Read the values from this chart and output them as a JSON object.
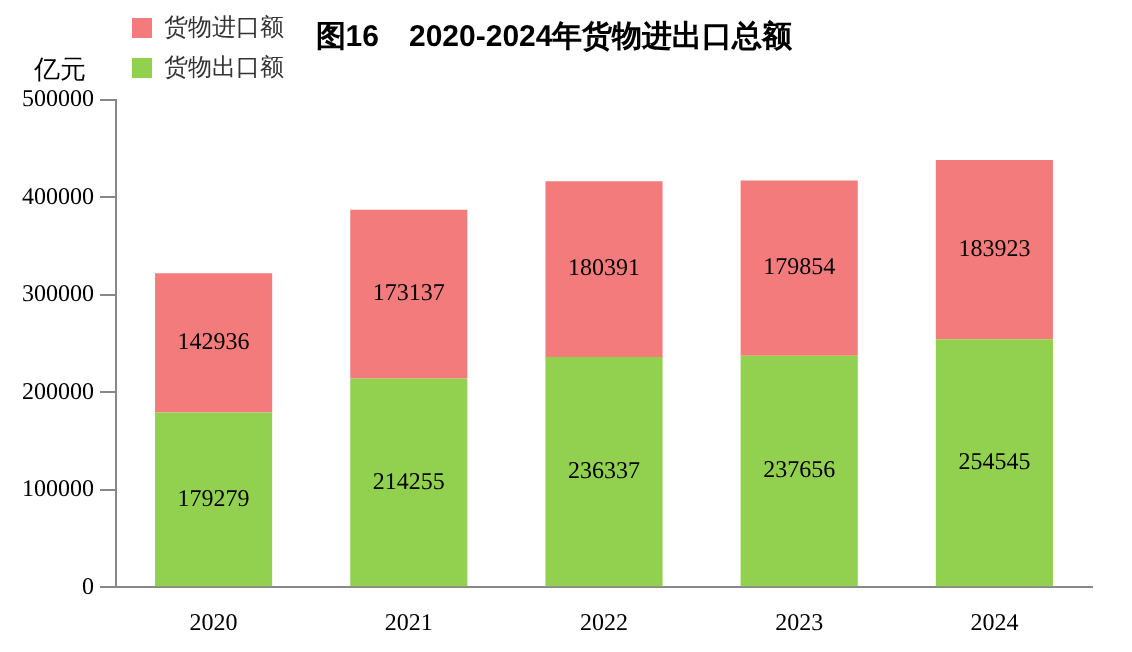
{
  "chart_data": {
    "type": "bar",
    "title": "图16　2020-2024年货物进出口总额",
    "ylabel": "亿元",
    "categories": [
      "2020",
      "2021",
      "2022",
      "2023",
      "2024"
    ],
    "series": [
      {
        "name": "货物出口额",
        "color": "#92d050",
        "values": [
          179279,
          214255,
          236337,
          237656,
          254545
        ]
      },
      {
        "name": "货物进口额",
        "color": "#f47b7b",
        "values": [
          142936,
          173137,
          180391,
          179854,
          183923
        ]
      }
    ],
    "stacked": true,
    "ylim": [
      0,
      500000
    ],
    "yticks": [
      0,
      100000,
      200000,
      300000,
      400000,
      500000
    ],
    "grid": false,
    "legend": "top left",
    "data_labels": true
  }
}
